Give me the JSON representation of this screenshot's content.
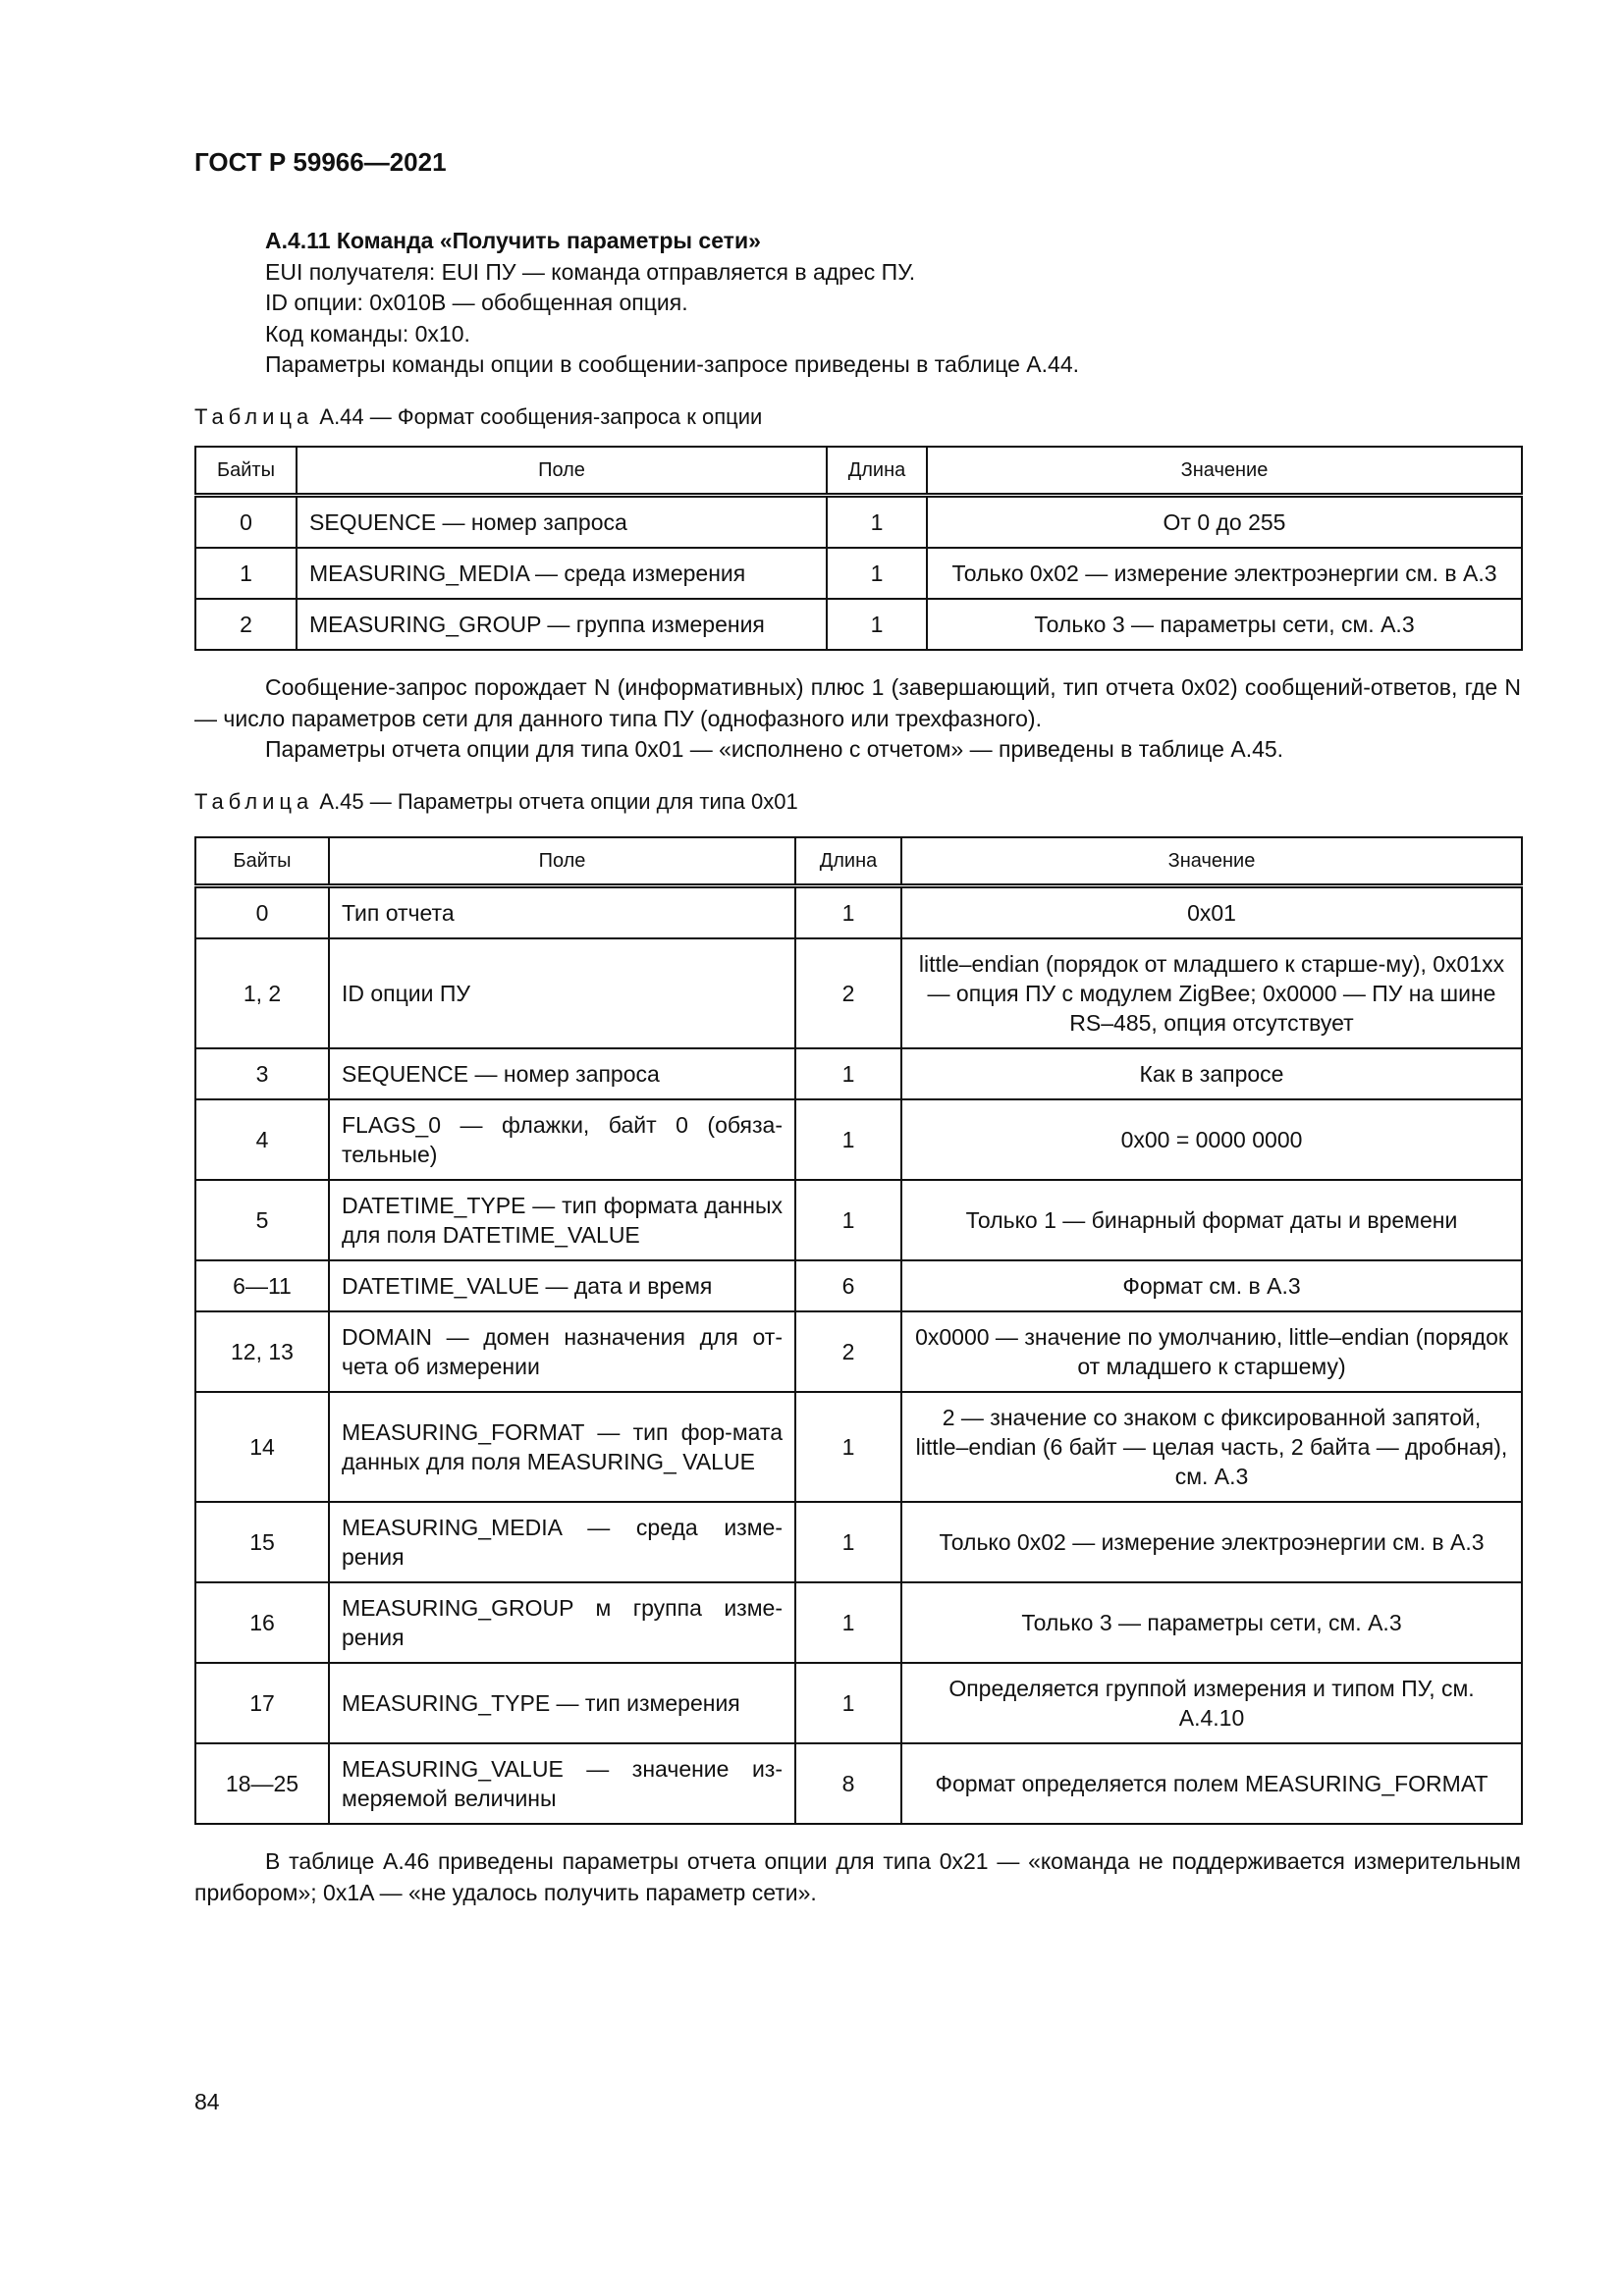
{
  "header": {
    "doc_id": "ГОСТ Р 59966—2021"
  },
  "section": {
    "heading": "А.4.11 Команда «Получить параметры сети»",
    "lines": [
      "EUI получателя: EUI ПУ — команда отправляется в адрес ПУ.",
      "ID опции: 0x010B — обобщенная опция.",
      "Код команды: 0x10.",
      "Параметры команды опции в сообщении-запросе приведены в таблице А.44."
    ]
  },
  "table44": {
    "caption_prefix": "Таблица",
    "caption": "А.44 — Формат сообщения-запроса к опции",
    "headers": [
      "Байты",
      "Поле",
      "Длина",
      "Значение"
    ],
    "rows": [
      [
        "0",
        "SEQUENCE — номер запроса",
        "1",
        "От 0 до 255"
      ],
      [
        "1",
        "MEASURING_MEDIA — среда измерения",
        "1",
        "Только 0x02 — измерение электроэнергии см. в А.3"
      ],
      [
        "2",
        "MEASURING_GROUP — группа измерения",
        "1",
        "Только 3 — параметры сети, см. А.3"
      ]
    ]
  },
  "paragraphs_mid": [
    "Сообщение-запрос порождает N (информативных) плюс 1 (завершающий, тип отчета 0x02) сообщений-ответов, где N — число параметров сети для данного типа ПУ (однофазного или трехфазного).",
    "Параметры отчета опции для типа 0x01 — «исполнено с отчетом» — приведены в таблице А.45."
  ],
  "table45": {
    "caption_prefix": "Таблица",
    "caption": "А.45 — Параметры отчета опции для типа 0x01",
    "headers": [
      "Байты",
      "Поле",
      "Длина",
      "Значение"
    ],
    "rows": [
      [
        "0",
        "Тип отчета",
        "1",
        "0x01"
      ],
      [
        "1, 2",
        "ID опции ПУ",
        "2",
        "little–endian (порядок от младшего к старше-му), 0x01xx — опция ПУ с модулем ZigBee; 0x0000 — ПУ на шине RS–485, опция отсутствует"
      ],
      [
        "3",
        "SEQUENCE — номер запроса",
        "1",
        "Как в запросе"
      ],
      [
        "4",
        "FLAGS_0 — флажки, байт 0 (обяза-тельные)",
        "1",
        "0x00 = 0000 0000"
      ],
      [
        "5",
        "DATETIME_TYPE — тип формата данных для поля DATETIME_VALUE",
        "1",
        "Только 1 — бинарный формат даты и времени"
      ],
      [
        "6—11",
        "DATETIME_VALUE — дата и время",
        "6",
        "Формат см. в А.3"
      ],
      [
        "12, 13",
        "DOMAIN — домен назначения для от-чета об измерении",
        "2",
        "0x0000 — значение по умолчанию, little–endian (порядок от младшего к старшему)"
      ],
      [
        "14",
        "MEASURING_FORMAT — тип фор-мата данных для поля MEASURING_ VALUE",
        "1",
        "2 — значение со знаком с фиксированной запятой, little–endian (6 байт — целая часть, 2 байта — дробная), см. А.3"
      ],
      [
        "15",
        "MEASURING_MEDIA — среда изме-рения",
        "1",
        "Только 0x02 — измерение электроэнергии см. в А.3"
      ],
      [
        "16",
        "MEASURING_GROUP м группа изме-рения",
        "1",
        "Только 3 — параметры сети, см. А.3"
      ],
      [
        "17",
        "MEASURING_TYPE — тип измерения",
        "1",
        "Определяется группой измерения и типом ПУ, см. А.4.10"
      ],
      [
        "18—25",
        "MEASURING_VALUE — значение из-меряемой величины",
        "8",
        "Формат определяется полем MEASURING_FORMAT"
      ]
    ]
  },
  "paragraph_end": "В таблице А.46 приведены параметры отчета опции для типа 0x21 — «команда не поддерживается измерительным прибором»; 0x1A — «не удалось получить параметр сети».",
  "page_number": "84"
}
